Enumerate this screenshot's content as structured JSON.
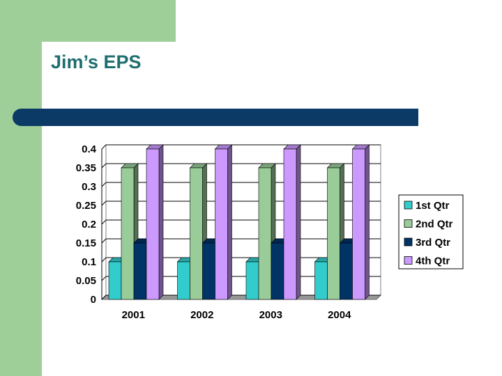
{
  "slide": {
    "title": "Jim’s EPS"
  },
  "chart_data": {
    "type": "bar",
    "title": "",
    "xlabel": "",
    "ylabel": "",
    "categories": [
      "2001",
      "2002",
      "2003",
      "2004"
    ],
    "series": [
      {
        "name": "1st Qtr",
        "values": [
          0.1,
          0.1,
          0.1,
          0.1
        ],
        "color": "#33cccc"
      },
      {
        "name": "2nd Qtr",
        "values": [
          0.35,
          0.35,
          0.35,
          0.35
        ],
        "color": "#99cc99"
      },
      {
        "name": "3rd Qtr",
        "values": [
          0.15,
          0.15,
          0.15,
          0.15
        ],
        "color": "#003366"
      },
      {
        "name": "4th Qtr",
        "values": [
          0.4,
          0.4,
          0.4,
          0.4
        ],
        "color": "#cc99ff"
      }
    ],
    "y_ticks": [
      "0",
      "0.05",
      "0.1",
      "0.15",
      "0.2",
      "0.25",
      "0.3",
      "0.35",
      "0.4"
    ],
    "ylim": [
      0,
      0.4
    ],
    "grid": true,
    "legend": "right"
  }
}
